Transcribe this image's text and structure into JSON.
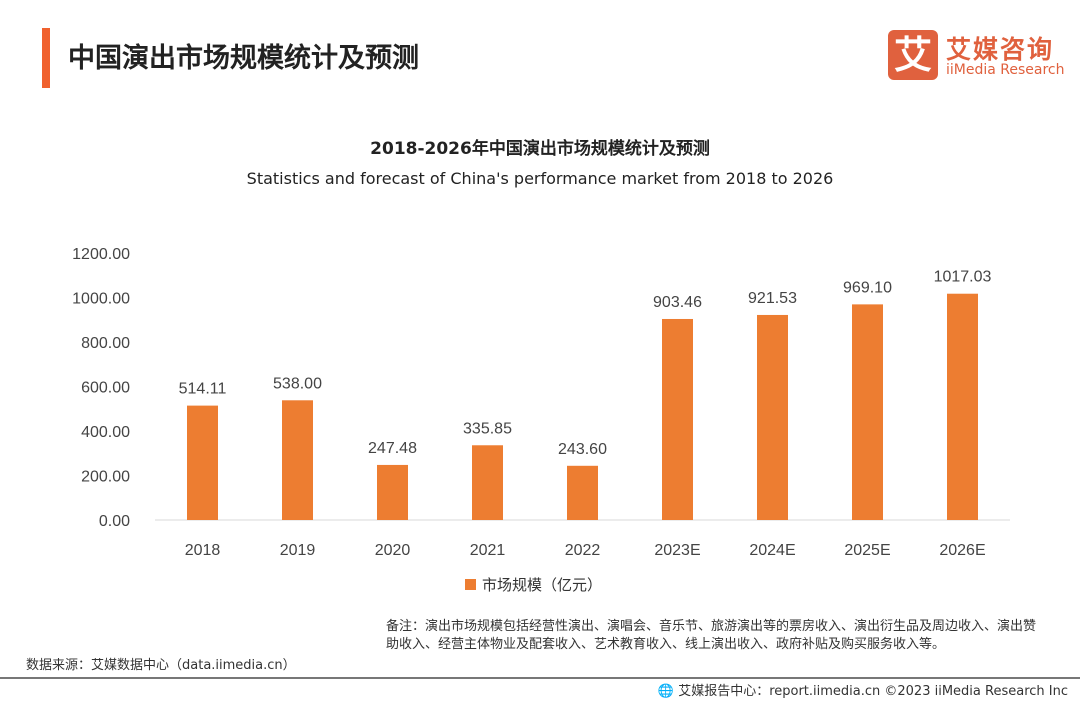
{
  "header": {
    "title": "中国演出市场规模统计及预测",
    "logo_mark": "艾",
    "logo_cn": "艾媒咨询",
    "logo_en": "iiMedia Research"
  },
  "chart_data": {
    "type": "bar",
    "title": "2018-2026年中国演出市场规模统计及预测",
    "subtitle": "Statistics and forecast of China's performance market from 2018 to 2026",
    "categories": [
      "2018",
      "2019",
      "2020",
      "2021",
      "2022",
      "2023E",
      "2024E",
      "2025E",
      "2026E"
    ],
    "series": [
      {
        "name": "市场规模（亿元）",
        "values": [
          514.11,
          538.0,
          247.48,
          335.85,
          243.6,
          903.46,
          921.53,
          969.1,
          1017.03
        ],
        "labels": [
          "514.11",
          "538.00",
          "247.48",
          "335.85",
          "243.60",
          "903.46",
          "921.53",
          "969.10",
          "1017.03"
        ],
        "color": "#ed7d31"
      }
    ],
    "yticks": [
      "0.00",
      "200.00",
      "400.00",
      "600.00",
      "800.00",
      "1000.00",
      "1200.00"
    ],
    "ylim": [
      0,
      1200
    ],
    "grid": false,
    "legend": "bottom"
  },
  "footer": {
    "note": "备注：演出市场规模包括经营性演出、演唱会、音乐节、旅游演出等的票房收入、演出衍生品及周边收入、演出赞助收入、经营主体物业及配套收入、艺术教育收入、线上演出收入、政府补贴及购买服务收入等。",
    "source": "数据来源：艾媒数据中心（data.iimedia.cn）",
    "copyright": "艾媒报告中心：report.iimedia.cn  ©2023  iiMedia Research  Inc"
  }
}
